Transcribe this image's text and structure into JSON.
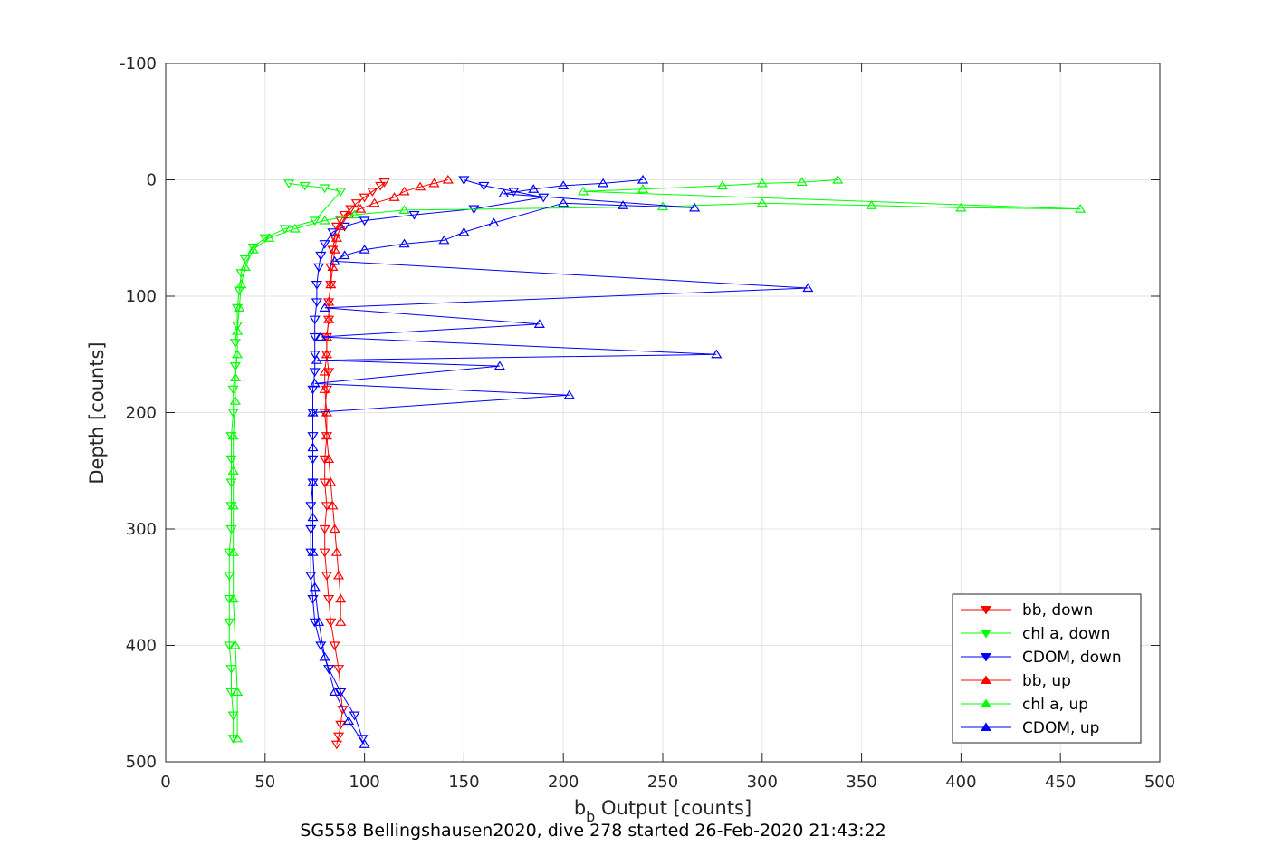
{
  "caption": "SG558 Bellingshausen2020, dive 278 started 26-Feb-2020 21:43:22",
  "chart_data": {
    "type": "scatter",
    "xlabel_main": "b",
    "xlabel_sub": "b",
    "xlabel_rest": " Output [counts]",
    "ylabel": "Depth [counts]",
    "xlim": [
      0,
      500
    ],
    "ylim": [
      -100,
      500
    ],
    "y_reversed": true,
    "grid": true,
    "legend_position": "bottom-right",
    "xticks": [
      0,
      50,
      100,
      150,
      200,
      250,
      300,
      350,
      400,
      450,
      500
    ],
    "yticks": [
      -100,
      0,
      100,
      200,
      300,
      400,
      500
    ],
    "xtick_labels": [
      "0",
      "50",
      "100",
      "150",
      "200",
      "250",
      "300",
      "350",
      "400",
      "450",
      "500"
    ],
    "ytick_labels": [
      "-100",
      "0",
      "100",
      "200",
      "300",
      "400",
      "500"
    ],
    "series": [
      {
        "name": "bb, down",
        "color": "#ff0000",
        "marker": "triangle-down",
        "x": [
          110,
          108,
          104,
          100,
          96,
          93,
          90,
          88,
          86,
          85,
          84,
          83,
          83,
          82,
          82,
          81,
          81,
          82,
          81,
          80,
          81,
          80,
          80,
          81,
          80,
          80,
          81,
          82,
          83,
          85,
          87,
          88,
          89,
          88,
          87,
          86
        ],
        "y": [
          2,
          5,
          10,
          15,
          20,
          25,
          30,
          35,
          40,
          50,
          60,
          75,
          90,
          105,
          120,
          135,
          150,
          165,
          180,
          200,
          220,
          240,
          260,
          280,
          300,
          320,
          340,
          360,
          380,
          400,
          420,
          440,
          455,
          468,
          478,
          485
        ]
      },
      {
        "name": "chl a, down",
        "color": "#00ff00",
        "marker": "triangle-down",
        "x": [
          62,
          70,
          80,
          88,
          75,
          60,
          50,
          44,
          40,
          38,
          37,
          36,
          36,
          35,
          35,
          34,
          34,
          33,
          33,
          33,
          33,
          33,
          32,
          32,
          32,
          32,
          32,
          33,
          33,
          34,
          34
        ],
        "y": [
          3,
          5,
          7,
          10,
          35,
          42,
          50,
          58,
          68,
          80,
          95,
          110,
          125,
          140,
          160,
          180,
          200,
          220,
          240,
          260,
          280,
          300,
          320,
          340,
          360,
          380,
          400,
          420,
          440,
          460,
          480
        ]
      },
      {
        "name": "CDOM, down",
        "color": "#0000ff",
        "marker": "triangle-down",
        "x": [
          150,
          160,
          175,
          190,
          155,
          125,
          100,
          90,
          84,
          80,
          78,
          77,
          76,
          76,
          75,
          75,
          75,
          75,
          74,
          74,
          74,
          74,
          74,
          73,
          73,
          73,
          73,
          74,
          75,
          78,
          82,
          88,
          95,
          99
        ],
        "y": [
          0,
          5,
          10,
          15,
          25,
          30,
          35,
          40,
          45,
          55,
          65,
          75,
          90,
          105,
          120,
          135,
          150,
          165,
          180,
          200,
          220,
          240,
          260,
          280,
          300,
          320,
          340,
          360,
          380,
          400,
          420,
          440,
          460,
          480
        ]
      },
      {
        "name": "bb, up",
        "color": "#ff0000",
        "marker": "triangle-up",
        "x": [
          142,
          135,
          128,
          120,
          115,
          105,
          98,
          92,
          88,
          86,
          85,
          84,
          83,
          82,
          82,
          81,
          81,
          80,
          80,
          81,
          81,
          82,
          83,
          84,
          85,
          86,
          87,
          88,
          88
        ],
        "y": [
          0,
          3,
          6,
          10,
          15,
          20,
          25,
          30,
          40,
          50,
          60,
          75,
          90,
          105,
          120,
          135,
          150,
          165,
          180,
          200,
          220,
          240,
          260,
          280,
          300,
          320,
          340,
          360,
          380
        ]
      },
      {
        "name": "chl a, up",
        "color": "#00ff00",
        "marker": "triangle-up",
        "x": [
          338,
          320,
          300,
          280,
          240,
          210,
          460,
          400,
          355,
          300,
          250,
          120,
          95,
          80,
          65,
          52,
          44,
          40,
          38,
          37,
          36,
          36,
          35,
          35,
          34,
          34,
          34,
          34,
          34,
          35,
          36,
          36
        ],
        "y": [
          0,
          2,
          3,
          5,
          8,
          10,
          25,
          24,
          22,
          20,
          23,
          26,
          30,
          35,
          42,
          50,
          60,
          75,
          90,
          110,
          130,
          150,
          170,
          190,
          220,
          250,
          280,
          320,
          360,
          400,
          440,
          480
        ]
      },
      {
        "name": "CDOM, up",
        "color": "#0000ff",
        "marker": "triangle-up",
        "x": [
          240,
          220,
          200,
          185,
          170,
          266,
          230,
          200,
          165,
          150,
          140,
          120,
          100,
          90,
          85,
          323,
          80,
          188,
          78,
          277,
          76,
          168,
          75,
          203,
          74,
          74,
          74,
          74,
          74,
          75,
          77,
          80,
          85,
          92,
          100
        ],
        "y": [
          0,
          3,
          5,
          8,
          12,
          24,
          22,
          20,
          37,
          45,
          52,
          55,
          60,
          65,
          70,
          93,
          110,
          124,
          135,
          150,
          155,
          160,
          175,
          185,
          200,
          230,
          260,
          290,
          320,
          350,
          380,
          410,
          440,
          465,
          485
        ]
      }
    ]
  }
}
